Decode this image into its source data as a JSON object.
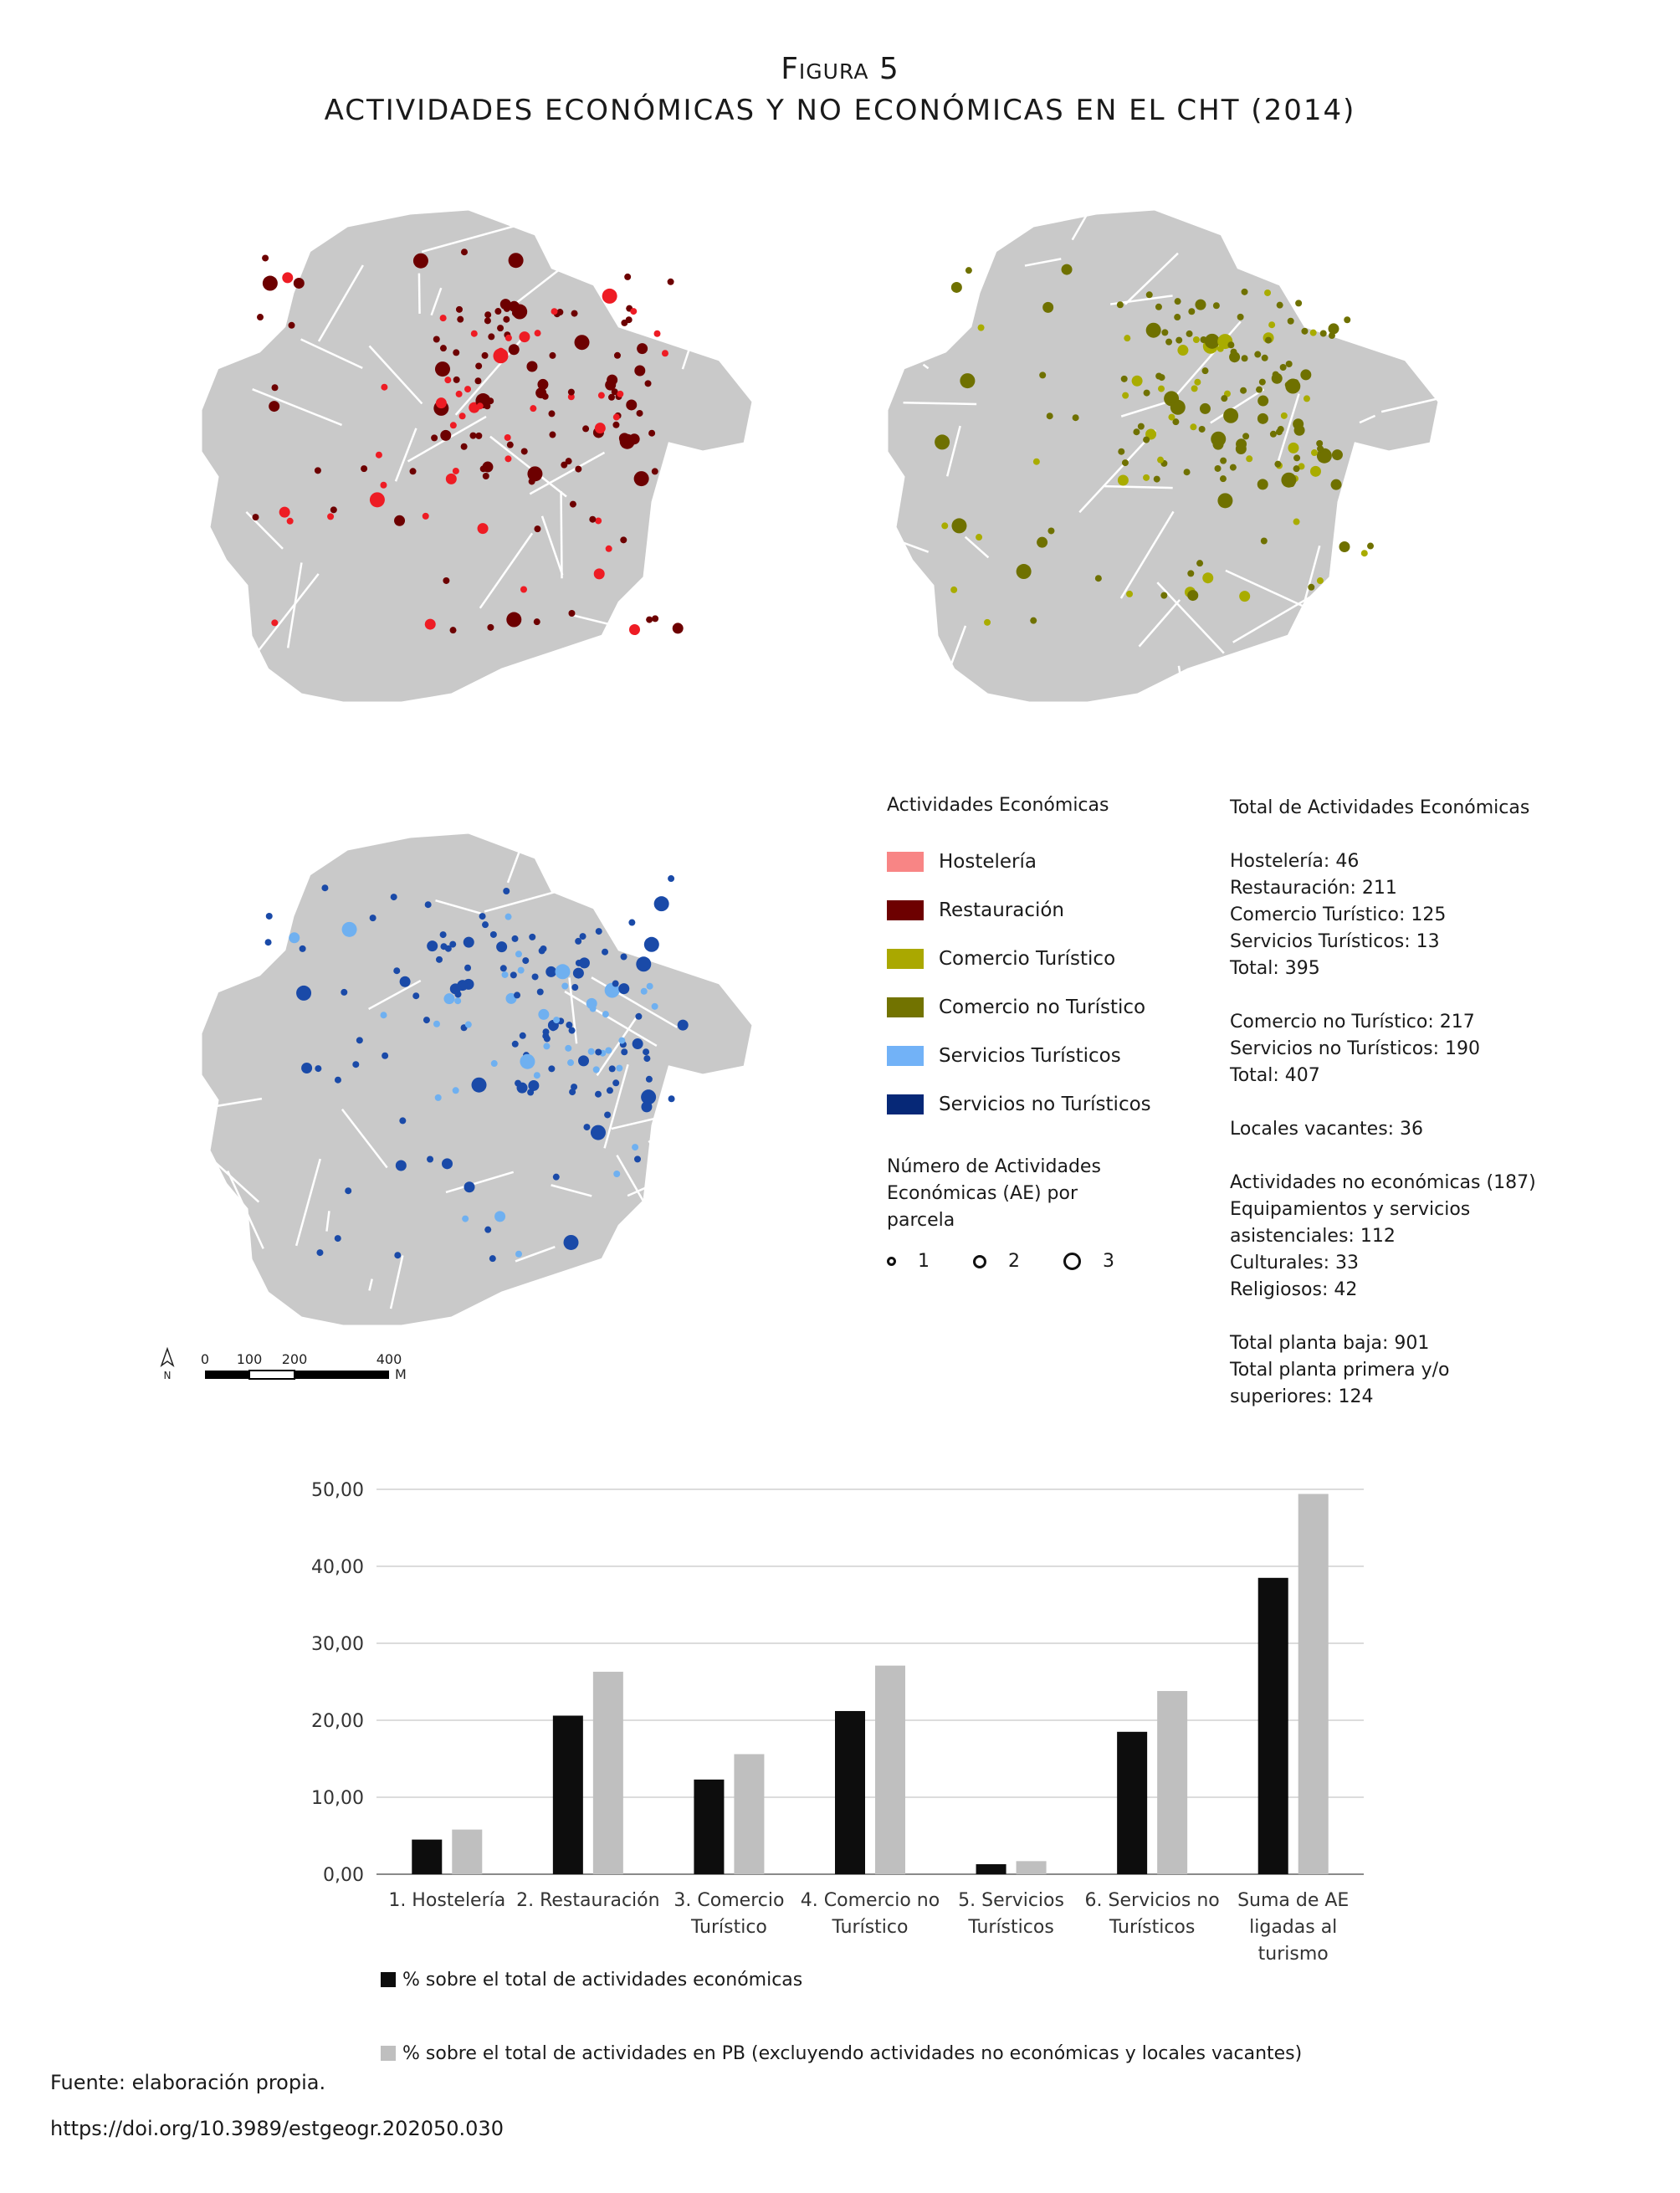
{
  "figure": {
    "label": "Figura 5",
    "title": "ACTIVIDADES ECONÓMICAS Y NO ECONÓMICAS EN EL CHT (2014)"
  },
  "maps": [
    {
      "name": "map-hosteleria-restauracion",
      "dot_colors": [
        "#ee1c24",
        "#6d0000"
      ]
    },
    {
      "name": "map-comercio",
      "dot_colors": [
        "#a9ac00",
        "#6f7100"
      ]
    },
    {
      "name": "map-servicios",
      "dot_colors": [
        "#6fb0f0",
        "#1a4aa8"
      ]
    }
  ],
  "legend": {
    "title": "Actividades Económicas",
    "items": [
      {
        "label": "Hostelería",
        "color": "#f88585"
      },
      {
        "label": "Restauración",
        "color": "#6d0000"
      },
      {
        "label": "Comercio Turístico",
        "color": "#aaa800"
      },
      {
        "label": "Comercio no Turístico",
        "color": "#727300"
      },
      {
        "label": "Servicios Turísticos",
        "color": "#72b2f7"
      },
      {
        "label": "Servicios no Turísticos",
        "color": "#062877"
      }
    ],
    "ae_title": "Número de Actividades Económicas (AE) por parcela",
    "sizes": [
      "1",
      "2",
      "3"
    ]
  },
  "totals": {
    "title": "Total de Actividades Económicas",
    "group1": [
      "Hostelería: 46",
      "Restauración: 211",
      "Comercio Turístico: 125",
      "Servicios Turísticos: 13",
      "Total: 395"
    ],
    "group2": [
      "Comercio no Turístico: 217",
      "Servicios no Turísticos: 190",
      "Total: 407"
    ],
    "group3": [
      "Locales vacantes: 36"
    ],
    "group4": [
      "Actividades no económicas (187)",
      "Equipamientos y servicios",
      "asistenciales: 112",
      "Culturales: 33",
      "Religiosos: 42"
    ],
    "group5": [
      "Total planta baja: 901",
      "Total planta primera y/o",
      "superiores: 124"
    ]
  },
  "scalebar": {
    "ticks": [
      "0",
      "100",
      "200",
      "400"
    ],
    "unit": "M",
    "north": "N"
  },
  "chart_data": {
    "type": "bar",
    "categories": [
      [
        "1. Hostelería"
      ],
      [
        "2. Restauración"
      ],
      [
        "3. Comercio",
        "Turístico"
      ],
      [
        "4. Comercio no",
        "Turístico"
      ],
      [
        "5. Servicios",
        "Turísticos"
      ],
      [
        "6. Servicios no",
        "Turísticos"
      ],
      [
        "Suma de AE",
        "ligadas al",
        "turismo"
      ]
    ],
    "series": [
      {
        "name": "% sobre el total de actividades económicas",
        "color": "#0d0d0d",
        "values": [
          4.5,
          20.6,
          12.3,
          21.2,
          1.3,
          18.5,
          38.5
        ]
      },
      {
        "name": "% sobre el total de actividades en PB (excluyendo actividades no económicas y locales vacantes)",
        "color": "#bfbfbf",
        "values": [
          5.8,
          26.3,
          15.6,
          27.1,
          1.7,
          23.8,
          49.4
        ]
      }
    ],
    "ylim": [
      0,
      50
    ],
    "yticks": [
      "0,00",
      "10,00",
      "20,00",
      "30,00",
      "40,00",
      "50,00"
    ],
    "grid": true,
    "legend_position": "bottom"
  },
  "source": "Fuente: elaboración propia.",
  "doi": "https://doi.org/10.3989/estgeogr.202050.030"
}
